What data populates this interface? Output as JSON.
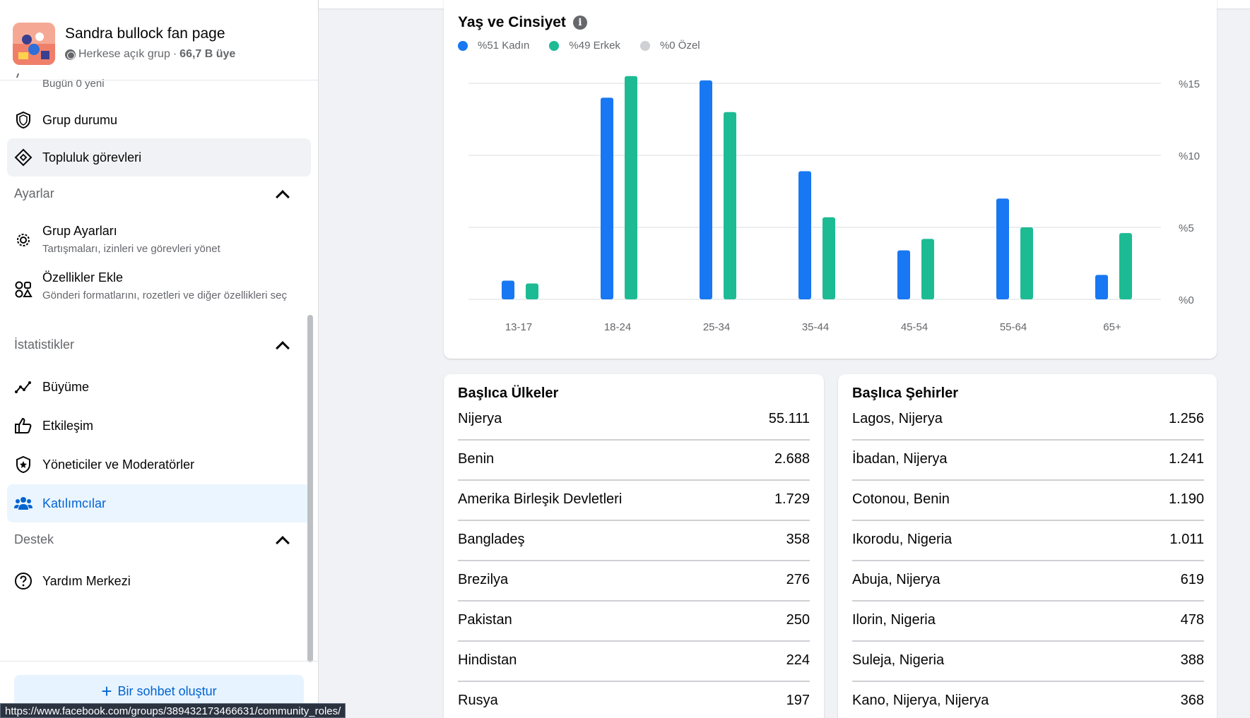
{
  "group": {
    "name": "Sandra bullock fan page",
    "privacy": "Herkese açık grup",
    "separator": "·",
    "members": "66,7 B üye"
  },
  "sidebar": {
    "today_text": "Bugün 0 yeni",
    "items_top": [
      {
        "label": "Grup durumu",
        "icon": "shield-icon"
      },
      {
        "label": "Topluluk görevleri",
        "icon": "diamond-icon"
      }
    ],
    "sections": {
      "settings": {
        "title": "Ayarlar",
        "items": [
          {
            "label": "Grup Ayarları",
            "sub": "Tartışmaları, izinleri ve görevleri yönet",
            "icon": "gear-icon"
          },
          {
            "label": "Özellikler Ekle",
            "sub": "Gönderi formatlarını, rozetleri ve diğer özellikleri seç",
            "icon": "shapes-icon"
          }
        ]
      },
      "stats": {
        "title": "İstatistikler",
        "items": [
          {
            "label": "Büyüme",
            "icon": "growth-icon"
          },
          {
            "label": "Etkileşim",
            "icon": "thumbs-up-icon"
          },
          {
            "label": "Yöneticiler ve Moderatörler",
            "icon": "badge-star-icon"
          },
          {
            "label": "Katılımcılar",
            "icon": "people-icon"
          }
        ]
      },
      "support": {
        "title": "Destek",
        "items": [
          {
            "label": "Yardım Merkezi",
            "icon": "question-icon"
          }
        ]
      }
    },
    "chat_button": {
      "plus": "+",
      "label": "Bir sohbet oluştur"
    }
  },
  "status_url": "https://www.facebook.com/groups/389432173466631/community_roles/",
  "colors": {
    "female": "#1877f2",
    "male": "#1dbb94",
    "custom": "#ced0d4",
    "accent": "#0064d1"
  },
  "age_gender": {
    "title": "Yaş ve Cinsiyet",
    "legend": [
      "%51 Kadın",
      "%49 Erkek",
      "%0 Özel"
    ]
  },
  "chart_data": {
    "type": "bar",
    "title": "Yaş ve Cinsiyet",
    "categories": [
      "13-17",
      "18-24",
      "25-34",
      "35-44",
      "45-54",
      "55-64",
      "65+"
    ],
    "series": [
      {
        "name": "%51 Kadın",
        "values": [
          1.3,
          14.0,
          15.2,
          8.9,
          3.4,
          7.0,
          1.7
        ]
      },
      {
        "name": "%49 Erkek",
        "values": [
          1.1,
          15.5,
          13.0,
          5.7,
          4.2,
          5.0,
          4.6
        ]
      }
    ],
    "y_ticks": [
      "%0",
      "%5",
      "%10",
      "%15"
    ],
    "ylim": [
      0,
      15.5
    ],
    "grid": true,
    "legend_position": "top-left"
  },
  "countries": {
    "title": "Başlıca Ülkeler",
    "rows": [
      {
        "name": "Nijerya",
        "value": "55.111"
      },
      {
        "name": "Benin",
        "value": "2.688"
      },
      {
        "name": "Amerika Birleşik Devletleri",
        "value": "1.729"
      },
      {
        "name": "Bangladeş",
        "value": "358"
      },
      {
        "name": "Brezilya",
        "value": "276"
      },
      {
        "name": "Pakistan",
        "value": "250"
      },
      {
        "name": "Hindistan",
        "value": "224"
      },
      {
        "name": "Rusya",
        "value": "197"
      }
    ]
  },
  "cities": {
    "title": "Başlıca Şehirler",
    "rows": [
      {
        "name": "Lagos, Nijerya",
        "value": "1.256"
      },
      {
        "name": "İbadan, Nijerya",
        "value": "1.241"
      },
      {
        "name": "Cotonou, Benin",
        "value": "1.190"
      },
      {
        "name": "Ikorodu, Nigeria",
        "value": "1.011"
      },
      {
        "name": "Abuja, Nijerya",
        "value": "619"
      },
      {
        "name": "Ilorin, Nigeria",
        "value": "478"
      },
      {
        "name": "Suleja, Nigeria",
        "value": "388"
      },
      {
        "name": "Kano, Nijerya, Nijerya",
        "value": "368"
      }
    ]
  }
}
